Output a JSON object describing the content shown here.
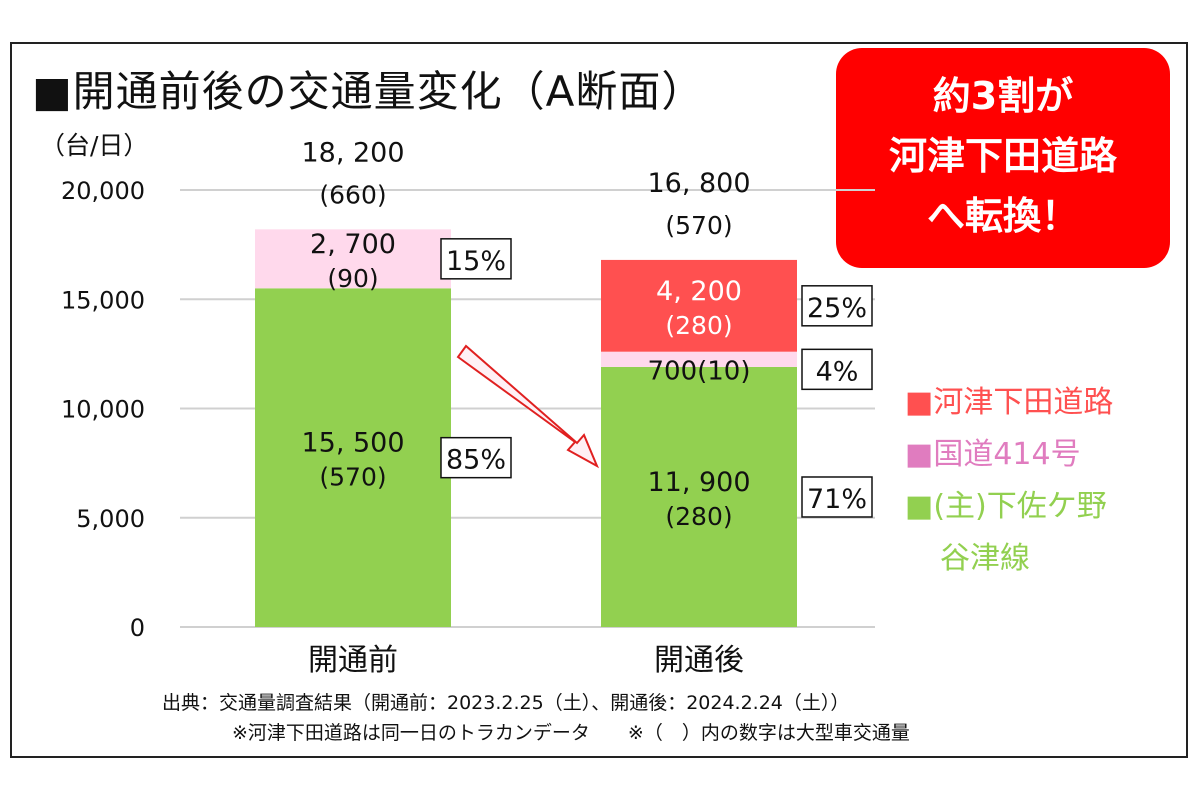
{
  "callout": {
    "lines": [
      "約3割が",
      "河津下田道路",
      "へ転換！"
    ]
  },
  "source": {
    "line1": "出典：交通量調査結果（開通前：2023.2.25（土）、開通後：2024.2.24（土））",
    "line2": "※河津下田道路は同一日のトラカンデータ　　※（　）内の数字は大型車交通量"
  },
  "chart_data": {
    "type": "bar",
    "stacked": true,
    "title": "■開通前後の交通量変化（A断面）",
    "ylabel": "（台/日）",
    "ylim": [
      0,
      20000
    ],
    "yticks": [
      "0",
      "5,000",
      "10,000",
      "15,000",
      "20,000"
    ],
    "categories": [
      "開通前",
      "開通後"
    ],
    "totals": [
      {
        "value": "18, 200",
        "heavy": "(660)"
      },
      {
        "value": "16, 800",
        "heavy": "(570)"
      }
    ],
    "series": [
      {
        "name": "(主)下佐ケ野谷津線",
        "legend_lines": [
          "■(主)下佐ケ野",
          "谷津線"
        ],
        "color": "#92d050",
        "legend_color": "#92d050",
        "values": [
          15500,
          11900
        ],
        "labels": [
          "15, 500",
          "11, 900"
        ],
        "heavy": [
          "(570)",
          "(280)"
        ],
        "shares": [
          "85%",
          "71%"
        ]
      },
      {
        "name": "国道414号",
        "legend_lines": [
          "■国道414号"
        ],
        "color": "#ffd9ec",
        "legend_color": "#e07cbf",
        "values": [
          2700,
          700
        ],
        "labels": [
          "2, 700",
          "700(10)"
        ],
        "heavy": [
          "(90)",
          ""
        ],
        "shares": [
          "15%",
          "4%"
        ]
      },
      {
        "name": "河津下田道路",
        "legend_lines": [
          "■河津下田道路"
        ],
        "color": "#ff5050",
        "legend_color": "#ff5050",
        "values": [
          0,
          4200
        ],
        "labels": [
          "",
          "4, 200"
        ],
        "heavy": [
          "",
          "(280)"
        ],
        "shares": [
          "",
          "25%"
        ]
      }
    ]
  }
}
